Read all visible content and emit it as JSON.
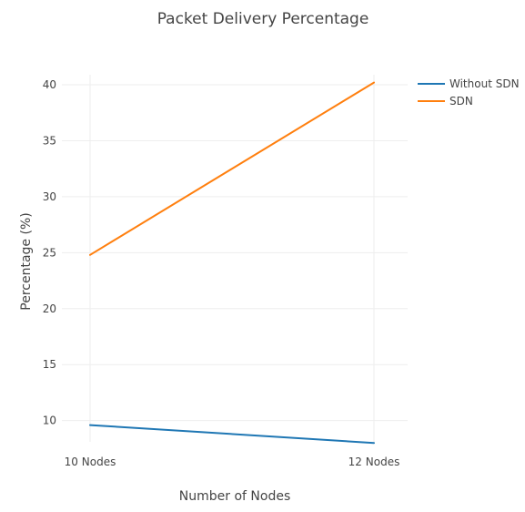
{
  "chart_data": {
    "type": "line",
    "title": "Packet Delivery Percentage",
    "xlabel": "Number of Nodes",
    "ylabel": "Percentage (%)",
    "categories": [
      "10 Nodes",
      "12 Nodes"
    ],
    "yticks": [
      10,
      15,
      20,
      25,
      30,
      35,
      40
    ],
    "ylim": [
      8.1,
      40.9
    ],
    "grid": true,
    "legend_position": "top-right",
    "series": [
      {
        "name": "Without SDN",
        "color": "#1f77b4",
        "values": [
          9.6,
          8.0
        ]
      },
      {
        "name": "SDN",
        "color": "#ff7f0e",
        "values": [
          24.8,
          40.2
        ]
      }
    ]
  }
}
